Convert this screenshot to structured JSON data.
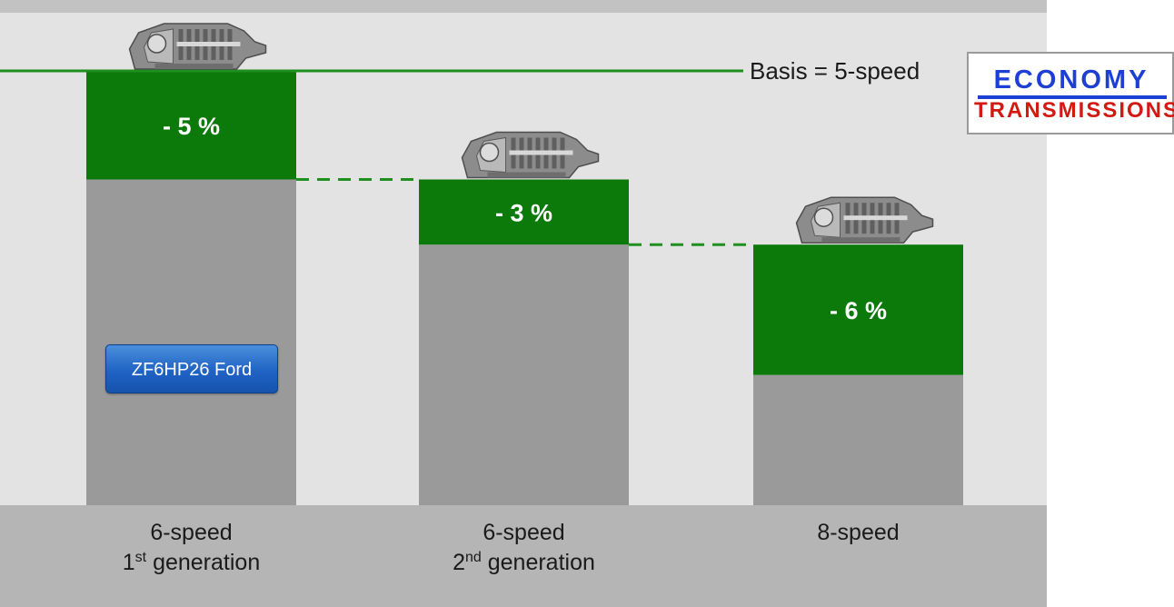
{
  "chart_data": {
    "type": "bar",
    "categories": [
      "6-speed 1st generation",
      "6-speed 2nd generation",
      "8-speed"
    ],
    "category_lines": [
      {
        "line1": "6-speed",
        "line2_prefix": "1",
        "line2_sup": "st",
        "line2_suffix": " generation"
      },
      {
        "line1": "6-speed",
        "line2_prefix": "2",
        "line2_sup": "nd",
        "line2_suffix": " generation"
      },
      {
        "line1": "8-speed",
        "line2_prefix": "",
        "line2_sup": "",
        "line2_suffix": ""
      }
    ],
    "baseline_label": "Basis = 5-speed",
    "baseline_value": 100,
    "previous_level": [
      100,
      95,
      92
    ],
    "reduction": [
      5,
      3,
      6
    ],
    "remaining": [
      95,
      92,
      86
    ],
    "value_labels": [
      "- 5 %",
      "- 3 %",
      "- 6 %"
    ],
    "ylim": [
      80,
      100
    ],
    "colors": {
      "reduction": "#0b7a0b",
      "remaining": "#9a9a9a",
      "baseline": "#1f8f1f",
      "plot_background": "#e3e3e3",
      "axis_band": "#b5b5b5",
      "top_band": "#c2c2c2"
    },
    "images": [
      "transmission-image",
      "transmission-image",
      "transmission-image"
    ]
  },
  "overlay": {
    "model_button": "ZF6HP26 Ford"
  },
  "logo": {
    "line1": "ECONOMY",
    "line2": "TRANSMISSIONS",
    "colors": {
      "line1": "#1d3fd3",
      "line2": "#d31a12"
    }
  }
}
